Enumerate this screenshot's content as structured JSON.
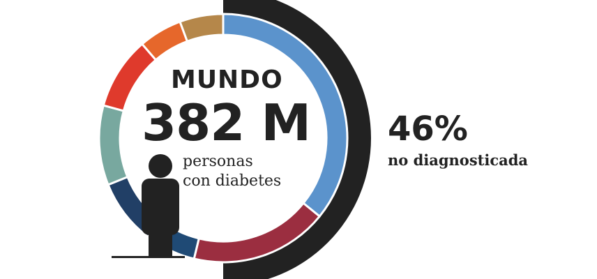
{
  "title": "MUNDO",
  "value": "382 M",
  "subtitle_line1": "personas",
  "subtitle_line2": "con diabetes",
  "undiagnosed": {
    "percent_label": "46%",
    "label": "no diagnosticada",
    "fraction": 0.46,
    "color": "#222222"
  },
  "chart_data": {
    "type": "pie",
    "title": "MUNDO",
    "total_label": "382 M",
    "values": [
      38,
      19,
      7,
      9,
      11,
      10,
      6,
      6
    ],
    "colors": [
      "#5b93cc",
      "#9b2e40",
      "#1f4a75",
      "#213f66",
      "#78a89f",
      "#df3a2c",
      "#e6672b",
      "#b5874a"
    ]
  },
  "colors": {
    "figure": "#222222",
    "text": "#222222"
  }
}
